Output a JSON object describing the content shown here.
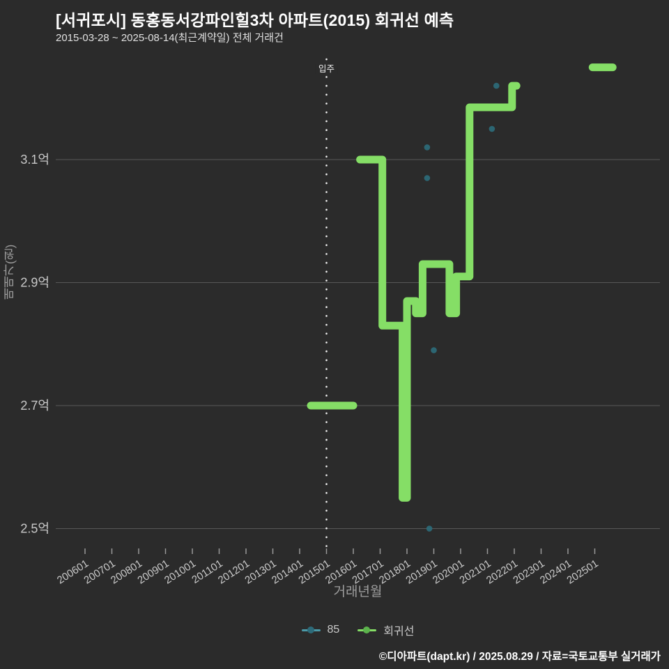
{
  "title": "[서귀포시] 동홍동서강파인힐3차 아파트(2015) 회귀선 예측",
  "subtitle": "2015-03-28 ~ 2025-08-14(최근계약일) 전체 거래건",
  "footer": "©디아파트(dapt.kr) / 2025.08.29 / 자료=국토교통부 실거래가",
  "colors": {
    "background": "#2b2b2b",
    "grid": "#585858",
    "tick_mark": "#9a9a9a",
    "tick_label": "#c9c9c9",
    "axis_title": "#9e9e9e",
    "title_text": "#ffffff",
    "subtitle_text": "#e0e0e0",
    "footer_text": "#ffffff",
    "scatter": "#2d6b7a",
    "scatter_legend_line": "#4b9aa8",
    "regression": "#85de66",
    "regression_legend_dot": "#5cb34c",
    "annotation": "#f0f0f0"
  },
  "legend": {
    "items": [
      {
        "label": "85",
        "type": "scatter"
      },
      {
        "label": "회귀선",
        "type": "line"
      }
    ]
  },
  "chart_data": {
    "type": "scatter + step-line regression",
    "title": "[서귀포시] 동홍동서강파인힐3차 아파트(2015) 회귀선 예측",
    "units": "억원",
    "x_axis": {
      "title": "거래년월",
      "tick_labels": [
        "200601",
        "200701",
        "200801",
        "200901",
        "201001",
        "201101",
        "201201",
        "201301",
        "201401",
        "201501",
        "201601",
        "201701",
        "201801",
        "201901",
        "202001",
        "202101",
        "202201",
        "202301",
        "202401",
        "202501"
      ],
      "domain_years": [
        2004.909,
        2027.429
      ],
      "grid": false
    },
    "y_axis": {
      "title": "매매가(원)",
      "ticks": [
        {
          "label": "3.1억",
          "value": 3.1
        },
        {
          "label": "2.9억",
          "value": 2.9
        },
        {
          "label": "2.7억",
          "value": 2.7
        },
        {
          "label": "2.5억",
          "value": 2.5
        }
      ],
      "domain": [
        2.4643,
        3.2632
      ],
      "grid": true
    },
    "annotation_line": {
      "label": "입주",
      "x": "2015-01",
      "style": "dotted-vertical"
    },
    "series": [
      {
        "name": "85",
        "type": "scatter",
        "color": "#2d6b7a",
        "points": [
          [
            "2018-10",
            3.12
          ],
          [
            "2018-10",
            3.07
          ],
          [
            "2018-11",
            2.5
          ],
          [
            "2019-01",
            2.79
          ],
          [
            "2021-03",
            3.15
          ],
          [
            "2021-05",
            3.22
          ]
        ]
      },
      {
        "name": "회귀선",
        "type": "step-line",
        "color": "#85de66",
        "segments": [
          [
            [
              "2014-06",
              2.7
            ],
            [
              "2016-01",
              2.7
            ]
          ],
          [
            [
              "2016-04",
              3.1
            ],
            [
              "2017-02",
              2.83
            ],
            [
              "2017-11",
              2.55
            ],
            [
              "2018-01",
              2.87
            ],
            [
              "2018-05",
              2.85
            ],
            [
              "2018-08",
              2.93
            ],
            [
              "2019-08",
              2.85
            ],
            [
              "2019-11",
              2.91
            ],
            [
              "2020-05",
              3.185
            ],
            [
              "2021-12",
              3.22
            ],
            [
              "2022-02",
              3.22
            ]
          ],
          [
            [
              "2024-12",
              3.25
            ],
            [
              "2025-09",
              3.25
            ]
          ]
        ]
      }
    ],
    "legend_position": "bottom-center"
  }
}
